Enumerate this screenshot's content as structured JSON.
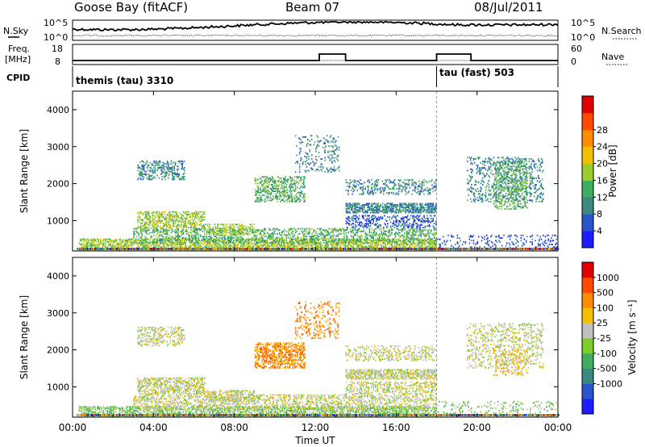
{
  "header": {
    "station": "Goose Bay (fitACF)",
    "beam": "Beam 07",
    "date": "08/Jul/2011"
  },
  "noise_panel": {
    "left_label": "N.Sky",
    "right_label": "N.Search",
    "left_ticks": [
      "10^5",
      "10^0"
    ],
    "right_ticks": [
      "10^5",
      "10^0"
    ]
  },
  "freq_panel": {
    "left_label_1": "Freq.",
    "left_label_2": "[MHz]",
    "right_label": "Nave",
    "left_ticks": [
      "18",
      "8"
    ],
    "right_ticks": [
      "60",
      "0"
    ],
    "freq_mhz": {
      "baseline": 10.5,
      "elevated": 14.5
    },
    "elevated_intervals_hours": [
      [
        12.2,
        13.5
      ],
      [
        18.0,
        19.7
      ]
    ]
  },
  "cpid_panel": {
    "label": "CPID",
    "segments": [
      {
        "name": "themis (tau) 3310",
        "start_hour": 0.0,
        "end_hour": 18.0
      },
      {
        "name": "tau (fast) 503",
        "start_hour": 18.0,
        "end_hour": 24.0
      }
    ]
  },
  "colors": {
    "power": [
      "#1c1cff",
      "#2a55c8",
      "#3b8a82",
      "#3fae60",
      "#9acd32",
      "#f2c000",
      "#ff8c00",
      "#ff4a00",
      "#e00000"
    ],
    "velocity": [
      "#1c1cff",
      "#2a55c8",
      "#3b8a82",
      "#3fae60",
      "#7ccd2a",
      "#c0c0c0",
      "#f2c000",
      "#ff8c00",
      "#ff4a00",
      "#e00000"
    ]
  },
  "chart_data": [
    {
      "type": "heatmap",
      "quantity": "power",
      "xlabel": "",
      "ylabel": "Slant Range [km]",
      "xlim": [
        0,
        24
      ],
      "ylim": [
        180,
        4500
      ],
      "yticks": [
        "1000",
        "2000",
        "3000",
        "4000"
      ],
      "yticks_values": [
        1000,
        2000,
        3000,
        4000
      ],
      "colorbar_label": "Power [dB]",
      "colorbar_ticks": [
        "4",
        "8",
        "12",
        "16",
        "20",
        "24",
        "28"
      ],
      "colorbar_range": [
        0,
        32
      ],
      "regions": [
        {
          "t0": 0.3,
          "t1": 18.0,
          "r0": 200,
          "r1": 500,
          "level": 4,
          "density": 0.55
        },
        {
          "t0": 3.0,
          "t1": 18.0,
          "r0": 380,
          "r1": 800,
          "level": 3,
          "density": 0.35
        },
        {
          "t0": 3.2,
          "t1": 6.5,
          "r0": 800,
          "r1": 1250,
          "level": 4,
          "density": 0.45
        },
        {
          "t0": 6.5,
          "t1": 9.0,
          "r0": 600,
          "r1": 900,
          "level": 4,
          "density": 0.4
        },
        {
          "t0": 3.2,
          "t1": 5.5,
          "r0": 2100,
          "r1": 2600,
          "level": 2,
          "density": 0.35
        },
        {
          "t0": 9.0,
          "t1": 11.5,
          "r0": 1500,
          "r1": 2200,
          "level": 3,
          "density": 0.4
        },
        {
          "t0": 11.0,
          "t1": 13.2,
          "r0": 2300,
          "r1": 3300,
          "level": 2,
          "density": 0.15
        },
        {
          "t0": 13.5,
          "t1": 18.0,
          "r0": 1200,
          "r1": 1450,
          "level": 2,
          "density": 0.6
        },
        {
          "t0": 13.5,
          "t1": 18.0,
          "r0": 800,
          "r1": 1150,
          "level": 1,
          "density": 0.35
        },
        {
          "t0": 13.5,
          "t1": 18.0,
          "r0": 1700,
          "r1": 2100,
          "level": 2,
          "density": 0.25
        },
        {
          "t0": 19.5,
          "t1": 23.3,
          "r0": 1500,
          "r1": 2700,
          "level": 2,
          "density": 0.22
        },
        {
          "t0": 20.8,
          "t1": 22.5,
          "r0": 1300,
          "r1": 2600,
          "level": 3,
          "density": 0.3
        },
        {
          "t0": 18.0,
          "t1": 24.0,
          "r0": 200,
          "r1": 600,
          "level": 1,
          "density": 0.15
        }
      ]
    },
    {
      "type": "heatmap",
      "quantity": "velocity",
      "xlabel": "Time UT",
      "ylabel": "Slant Range [km]",
      "xlim": [
        0,
        24
      ],
      "ylim": [
        180,
        4500
      ],
      "xticks": [
        "00:00",
        "04:00",
        "08:00",
        "12:00",
        "16:00",
        "20:00",
        "00:00"
      ],
      "xticks_values": [
        0,
        4,
        8,
        12,
        16,
        20,
        24
      ],
      "yticks": [
        "1000",
        "2000",
        "3000",
        "4000"
      ],
      "yticks_values": [
        1000,
        2000,
        3000,
        4000
      ],
      "colorbar_label": "Velocity [m s⁻¹]",
      "colorbar_ticks": [
        "1000",
        "500",
        "100",
        "25",
        "-25",
        "-100",
        "-500",
        "-1000"
      ],
      "regions": [
        {
          "t0": 0.3,
          "t1": 18.0,
          "r0": 200,
          "r1": 450,
          "level": 4,
          "density": 0.5
        },
        {
          "t0": 3.0,
          "t1": 18.0,
          "r0": 380,
          "r1": 800,
          "level": 5,
          "density": 0.35
        },
        {
          "t0": 3.2,
          "t1": 6.5,
          "r0": 800,
          "r1": 1250,
          "level": 5,
          "density": 0.45
        },
        {
          "t0": 6.5,
          "t1": 9.0,
          "r0": 600,
          "r1": 900,
          "level": 5,
          "density": 0.4
        },
        {
          "t0": 3.2,
          "t1": 5.5,
          "r0": 2100,
          "r1": 2600,
          "level": 5,
          "density": 0.35
        },
        {
          "t0": 9.0,
          "t1": 11.5,
          "r0": 1500,
          "r1": 2200,
          "level": 7,
          "density": 0.5
        },
        {
          "t0": 11.0,
          "t1": 13.2,
          "r0": 2300,
          "r1": 3300,
          "level": 7,
          "density": 0.18
        },
        {
          "t0": 13.5,
          "t1": 18.0,
          "r0": 1200,
          "r1": 1450,
          "level": 5,
          "density": 0.6
        },
        {
          "t0": 13.5,
          "t1": 18.0,
          "r0": 800,
          "r1": 1150,
          "level": 5,
          "density": 0.35
        },
        {
          "t0": 13.5,
          "t1": 18.0,
          "r0": 1700,
          "r1": 2100,
          "level": 5,
          "density": 0.25
        },
        {
          "t0": 19.5,
          "t1": 23.3,
          "r0": 1500,
          "r1": 2700,
          "level": 5,
          "density": 0.22
        },
        {
          "t0": 20.8,
          "t1": 22.5,
          "r0": 1300,
          "r1": 2000,
          "level": 6,
          "density": 0.2
        },
        {
          "t0": 18.0,
          "t1": 24.0,
          "r0": 200,
          "r1": 600,
          "level": 4,
          "density": 0.12
        }
      ]
    }
  ]
}
